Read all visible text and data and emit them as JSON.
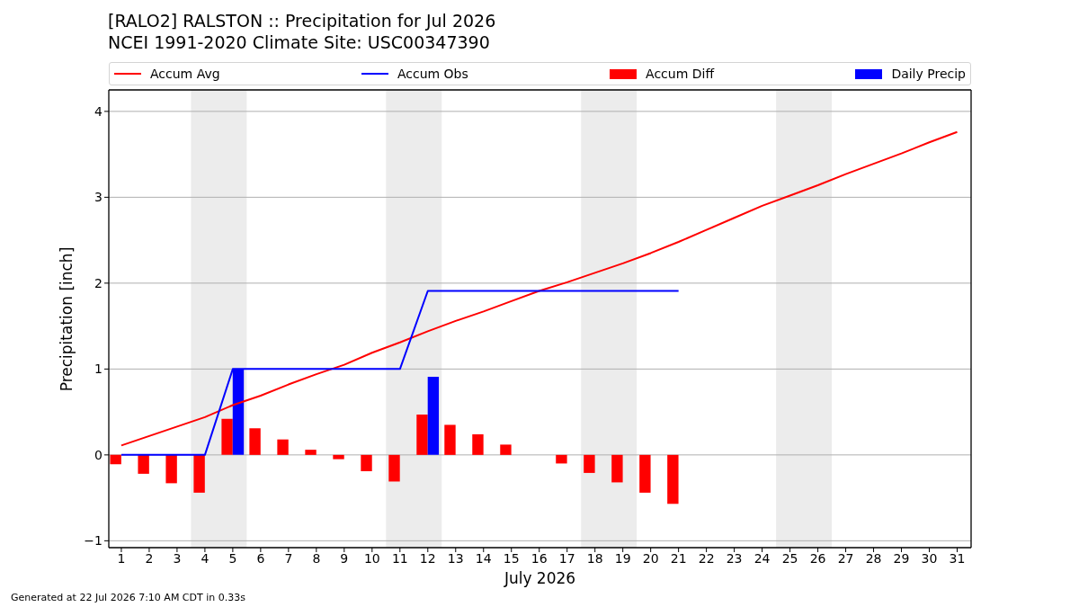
{
  "chart_data": {
    "type": "bar",
    "title": "[RALO2] RALSTON :: Precipitation for Jul 2026",
    "subtitle": "NCEI 1991-2020 Climate Site: USC00347390",
    "xlabel": "July 2026",
    "ylabel": "Precipitation [inch]",
    "x": [
      1,
      2,
      3,
      4,
      5,
      6,
      7,
      8,
      9,
      10,
      11,
      12,
      13,
      14,
      15,
      16,
      17,
      18,
      19,
      20,
      21,
      22,
      23,
      24,
      25,
      26,
      27,
      28,
      29,
      30,
      31
    ],
    "xlim": [
      0.55,
      31.5
    ],
    "xticks": [
      1,
      2,
      3,
      4,
      5,
      6,
      7,
      8,
      9,
      10,
      11,
      12,
      13,
      14,
      15,
      16,
      17,
      18,
      19,
      20,
      21,
      22,
      23,
      24,
      25,
      26,
      27,
      28,
      29,
      30,
      31
    ],
    "ylim": [
      -1.08,
      4.25
    ],
    "yticks": [
      -1,
      0,
      1,
      2,
      3,
      4
    ],
    "grid": "y",
    "legend": "top",
    "bands": [
      {
        "axis": "x",
        "from": 3.5,
        "to": 5.5,
        "color": "#ececec"
      },
      {
        "axis": "x",
        "from": 10.5,
        "to": 12.5,
        "color": "#ececec"
      },
      {
        "axis": "x",
        "from": 17.5,
        "to": 19.5,
        "color": "#ececec"
      },
      {
        "axis": "x",
        "from": 24.5,
        "to": 26.5,
        "color": "#ececec"
      }
    ],
    "series": [
      {
        "name": "Accum Avg",
        "type": "line",
        "color": "#ff0000",
        "values": [
          0.11,
          0.22,
          0.33,
          0.44,
          0.58,
          0.69,
          0.82,
          0.94,
          1.05,
          1.19,
          1.31,
          1.44,
          1.56,
          1.67,
          1.79,
          1.91,
          2.01,
          2.12,
          2.23,
          2.35,
          2.48,
          2.62,
          2.76,
          2.9,
          3.02,
          3.14,
          3.27,
          3.39,
          3.51,
          3.64,
          3.76
        ]
      },
      {
        "name": "Accum Obs",
        "type": "line",
        "color": "#0000ff",
        "values": [
          0,
          0,
          0,
          0,
          1.0,
          1.0,
          1.0,
          1.0,
          1.0,
          1.0,
          1.0,
          1.91,
          1.91,
          1.91,
          1.91,
          1.91,
          1.91,
          1.91,
          1.91,
          1.91,
          1.91,
          null,
          null,
          null,
          null,
          null,
          null,
          null,
          null,
          null,
          null
        ]
      },
      {
        "name": "Accum Diff",
        "color": "#ff0000",
        "values": [
          -0.11,
          -0.22,
          -0.33,
          -0.44,
          0.42,
          0.31,
          0.18,
          0.06,
          -0.05,
          -0.19,
          -0.31,
          0.47,
          0.35,
          0.24,
          0.12,
          0,
          -0.1,
          -0.21,
          -0.32,
          -0.44,
          -0.57,
          null,
          null,
          null,
          null,
          null,
          null,
          null,
          null,
          null,
          null
        ]
      },
      {
        "name": "Daily Precip",
        "color": "#0000ff",
        "values": [
          0,
          0,
          0,
          0,
          1.0,
          0,
          0,
          0,
          0,
          0,
          0,
          0.91,
          0,
          0,
          0,
          0,
          0,
          0,
          0,
          0,
          0,
          null,
          null,
          null,
          null,
          null,
          null,
          null,
          null,
          null,
          null
        ]
      }
    ],
    "annotations": [
      "Generated at 22 Jul 2026 7:10 AM CDT in 0.33s"
    ]
  }
}
